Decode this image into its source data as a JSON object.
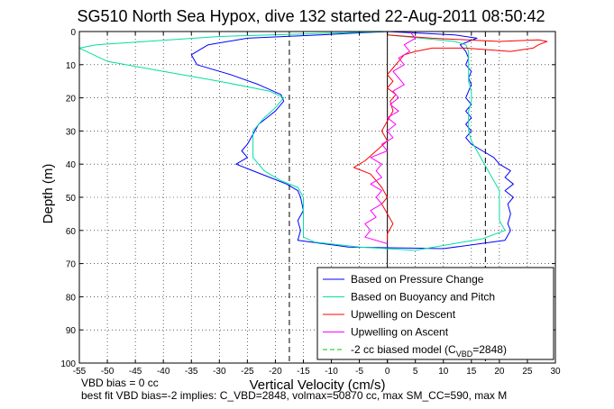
{
  "chart_data": {
    "type": "line",
    "title": "SG510 North Sea Hypox, dive 132 started 22-Aug-2011 08:50:42",
    "xlabel": "Vertical Velocity (cm/s)",
    "ylabel": "Depth (m)",
    "xlim": [
      -55,
      30
    ],
    "ylim": [
      0,
      100
    ],
    "y_reversed": true,
    "x_ticks": [
      "-55",
      "-50",
      "-45",
      "-40",
      "-35",
      "-30",
      "-25",
      "-20",
      "-15",
      "-10",
      "-5",
      "0",
      "5",
      "10",
      "15",
      "20",
      "25",
      "30"
    ],
    "y_ticks": [
      "0",
      "10",
      "20",
      "30",
      "40",
      "50",
      "60",
      "70",
      "80",
      "90",
      "100"
    ],
    "grid": true,
    "legend_position": "bottom-right",
    "reference_lines": [
      {
        "x": 0,
        "style": "solid"
      },
      {
        "x": -17.5,
        "style": "dashed"
      },
      {
        "x": 17.5,
        "style": "dashed"
      }
    ],
    "series": [
      {
        "name": "Based on Pressure Change",
        "color": "#0000ff",
        "points": [
          [
            0,
            0
          ],
          [
            -12,
            1
          ],
          [
            -25,
            2
          ],
          [
            -32,
            4
          ],
          [
            -35,
            7
          ],
          [
            -34,
            10
          ],
          [
            -28,
            13
          ],
          [
            -23,
            16
          ],
          [
            -19,
            19
          ],
          [
            -18.5,
            21
          ],
          [
            -20,
            24
          ],
          [
            -23,
            28
          ],
          [
            -24,
            31
          ],
          [
            -25,
            34
          ],
          [
            -26,
            36
          ],
          [
            -25,
            38
          ],
          [
            -27,
            40
          ],
          [
            -24,
            42
          ],
          [
            -21,
            44
          ],
          [
            -18,
            46
          ],
          [
            -16,
            48
          ],
          [
            -15.5,
            50
          ],
          [
            -15,
            54
          ],
          [
            -16,
            57
          ],
          [
            -15.5,
            60
          ],
          [
            -16,
            63
          ],
          [
            -7,
            65
          ],
          [
            10,
            65.5
          ],
          [
            21,
            63
          ],
          [
            22,
            60
          ],
          [
            21.5,
            58
          ],
          [
            22,
            55
          ],
          [
            21.5,
            52
          ],
          [
            22.5,
            50
          ],
          [
            21,
            48
          ],
          [
            22.5,
            46
          ],
          [
            21,
            44
          ],
          [
            22,
            42
          ],
          [
            20,
            40
          ],
          [
            19,
            38
          ],
          [
            17,
            36
          ],
          [
            15,
            34
          ],
          [
            14,
            32
          ],
          [
            15,
            30
          ],
          [
            14,
            28
          ],
          [
            15,
            26
          ],
          [
            14,
            24
          ],
          [
            15,
            22
          ],
          [
            14,
            20
          ],
          [
            14.5,
            18
          ],
          [
            15,
            16
          ],
          [
            14.5,
            14
          ],
          [
            15,
            12
          ],
          [
            14,
            10
          ],
          [
            14.5,
            8
          ],
          [
            14,
            6
          ],
          [
            13,
            4
          ],
          [
            16,
            2
          ],
          [
            12,
            1
          ],
          [
            0,
            0
          ]
        ]
      },
      {
        "name": "Based on Buoyancy and Pitch",
        "color": "#00e0a0",
        "points": [
          [
            0,
            0
          ],
          [
            -30,
            1.5
          ],
          [
            -52,
            4
          ],
          [
            -55,
            5
          ],
          [
            -50,
            9
          ],
          [
            -40,
            12
          ],
          [
            -30,
            15
          ],
          [
            -21,
            18
          ],
          [
            -18.5,
            20
          ],
          [
            -20,
            23
          ],
          [
            -22,
            26
          ],
          [
            -24,
            30
          ],
          [
            -24,
            34
          ],
          [
            -24,
            38
          ],
          [
            -22,
            42
          ],
          [
            -19,
            45
          ],
          [
            -16,
            47
          ],
          [
            -15,
            50
          ],
          [
            -15,
            54
          ],
          [
            -15,
            58
          ],
          [
            -15,
            62
          ],
          [
            -13,
            63.5
          ],
          [
            -5,
            65
          ],
          [
            5,
            66
          ],
          [
            17,
            62.5
          ],
          [
            21,
            60
          ],
          [
            20,
            57
          ],
          [
            20,
            54
          ],
          [
            20,
            51
          ],
          [
            20,
            48
          ],
          [
            19,
            45
          ],
          [
            18,
            42
          ],
          [
            17,
            39
          ],
          [
            16,
            36
          ],
          [
            15,
            33
          ],
          [
            14.5,
            30
          ],
          [
            14.5,
            27
          ],
          [
            14.5,
            24
          ],
          [
            15,
            21
          ],
          [
            15,
            18
          ],
          [
            14.5,
            15
          ],
          [
            14.5,
            12
          ],
          [
            14.5,
            9
          ],
          [
            14.5,
            6
          ],
          [
            14,
            4
          ],
          [
            12,
            3
          ],
          [
            0,
            1
          ]
        ]
      },
      {
        "name": "Upwelling on Descent",
        "color": "#ff0000",
        "points": [
          [
            0,
            1
          ],
          [
            8,
            2
          ],
          [
            20,
            3
          ],
          [
            27,
            2.5
          ],
          [
            28.5,
            3
          ],
          [
            27,
            4
          ],
          [
            26,
            5
          ],
          [
            22,
            6
          ],
          [
            14,
            5
          ],
          [
            8,
            5
          ],
          [
            5,
            6
          ],
          [
            3,
            7
          ],
          [
            2,
            9
          ],
          [
            1,
            11
          ],
          [
            0,
            13
          ],
          [
            1,
            15
          ],
          [
            0,
            17
          ],
          [
            1.5,
            19
          ],
          [
            0.5,
            21
          ],
          [
            1,
            24
          ],
          [
            0,
            27
          ],
          [
            -1,
            30
          ],
          [
            0,
            33
          ],
          [
            -2,
            36
          ],
          [
            -4,
            39
          ],
          [
            -6,
            41
          ],
          [
            -3,
            43
          ],
          [
            -2,
            45
          ],
          [
            -1,
            47
          ],
          [
            0,
            50
          ],
          [
            -1,
            52
          ],
          [
            0,
            55
          ],
          [
            1,
            58
          ],
          [
            0,
            61
          ],
          [
            0,
            63
          ]
        ]
      },
      {
        "name": "Upwelling on Ascent",
        "color": "#ff00ff",
        "points": [
          [
            0,
            64
          ],
          [
            -4,
            62
          ],
          [
            -3,
            60
          ],
          [
            -4,
            58
          ],
          [
            -2,
            56
          ],
          [
            -3,
            54
          ],
          [
            -1,
            52
          ],
          [
            -2,
            50
          ],
          [
            -1,
            48
          ],
          [
            -3,
            46
          ],
          [
            -1,
            44
          ],
          [
            -2,
            42
          ],
          [
            -1,
            40
          ],
          [
            -3,
            38
          ],
          [
            0,
            36
          ],
          [
            -1,
            34
          ],
          [
            1,
            32
          ],
          [
            0,
            30
          ],
          [
            1.5,
            28
          ],
          [
            0,
            26
          ],
          [
            2,
            24
          ],
          [
            0.5,
            22
          ],
          [
            2,
            20
          ],
          [
            1,
            18
          ],
          [
            3,
            16
          ],
          [
            2,
            14
          ],
          [
            1,
            12
          ],
          [
            3,
            10
          ],
          [
            2,
            8
          ],
          [
            4,
            6
          ],
          [
            3,
            4
          ],
          [
            5,
            2
          ],
          [
            4,
            0
          ]
        ]
      },
      {
        "name": "-2 cc biased model (C_VBD=2848)",
        "color": "#00cc00",
        "dashed": true,
        "points": []
      }
    ]
  },
  "notes": {
    "line1": "VBD bias = 0 cc",
    "line2": "best fit VBD bias=-2 implies: C_VBD=2848, volmax=50870 cc, max SM_CC=590, max M"
  }
}
